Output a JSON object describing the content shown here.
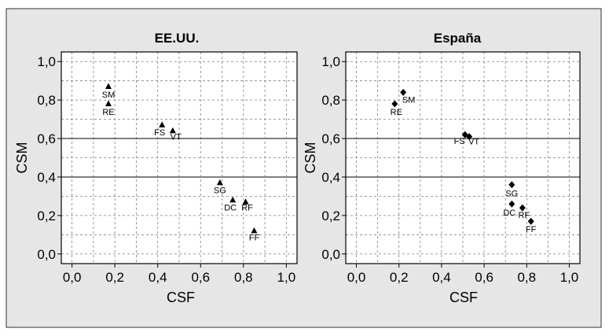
{
  "chart_data": [
    {
      "type": "scatter",
      "title": "EE.UU.",
      "xlabel": "CSF",
      "ylabel": "CSM",
      "xlim": [
        -0.05,
        1.05
      ],
      "ylim": [
        -0.05,
        1.05
      ],
      "xticks": [
        "0,0",
        "0,2",
        "0,4",
        "0,6",
        "0,8",
        "1,0"
      ],
      "yticks": [
        "0,0",
        "0,2",
        "0,4",
        "0,6",
        "0,8",
        "1,0"
      ],
      "marker": "triangle",
      "grid": "dashed, with solid lines at y=0,4 and y=0,6",
      "points": [
        {
          "label": "SM",
          "x": 0.17,
          "y": 0.87
        },
        {
          "label": "RE",
          "x": 0.17,
          "y": 0.78
        },
        {
          "label": "FS",
          "x": 0.42,
          "y": 0.67
        },
        {
          "label": "VT",
          "x": 0.47,
          "y": 0.64
        },
        {
          "label": "SG",
          "x": 0.69,
          "y": 0.37
        },
        {
          "label": "DC",
          "x": 0.75,
          "y": 0.28
        },
        {
          "label": "RF",
          "x": 0.81,
          "y": 0.27
        },
        {
          "label": "FF",
          "x": 0.85,
          "y": 0.12
        }
      ]
    },
    {
      "type": "scatter",
      "title": "España",
      "xlabel": "CSF",
      "ylabel": "CSM",
      "xlim": [
        -0.05,
        1.05
      ],
      "ylim": [
        -0.05,
        1.05
      ],
      "xticks": [
        "0,0",
        "0,2",
        "0,4",
        "0,6",
        "0,8",
        "1,0"
      ],
      "yticks": [
        "0,0",
        "0,2",
        "0,4",
        "0,6",
        "0,8",
        "1,0"
      ],
      "marker": "diamond",
      "grid": "dashed, with solid lines at y=0,4 and y=0,6",
      "points": [
        {
          "label": "SM",
          "x": 0.22,
          "y": 0.84
        },
        {
          "label": "RE",
          "x": 0.18,
          "y": 0.78
        },
        {
          "label": "FS",
          "x": 0.51,
          "y": 0.62
        },
        {
          "label": "VT",
          "x": 0.53,
          "y": 0.61
        },
        {
          "label": "SG",
          "x": 0.73,
          "y": 0.36
        },
        {
          "label": "DC",
          "x": 0.73,
          "y": 0.26
        },
        {
          "label": "RF",
          "x": 0.78,
          "y": 0.24
        },
        {
          "label": "FF",
          "x": 0.82,
          "y": 0.17
        }
      ]
    }
  ],
  "colors": {
    "outer_panel": "#e6e6e6",
    "plot_background": "#ffffff",
    "frame": "#000000",
    "dashed_grid": "#7f7f7f",
    "marker": "#000000",
    "text": "#000000"
  }
}
